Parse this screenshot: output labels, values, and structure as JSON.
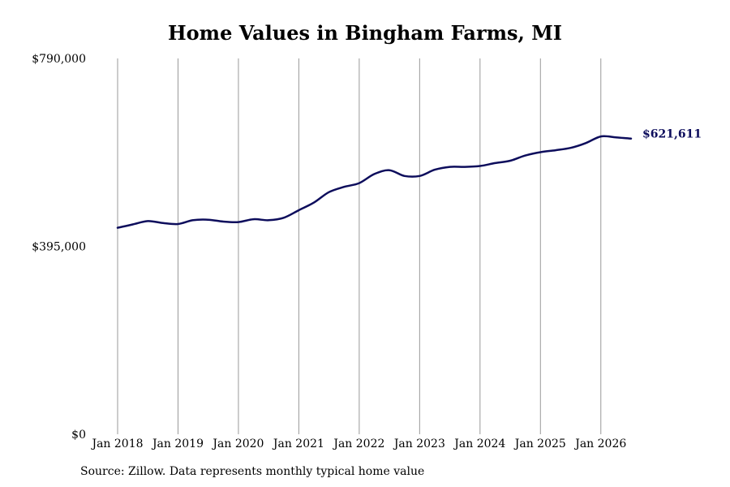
{
  "chart_data": {
    "type": "line",
    "title": "Home Values in Bingham Farms, MI",
    "xlabel": "",
    "ylabel": "",
    "ylim": [
      0,
      790000
    ],
    "xlim": [
      "2018-01",
      "2026-07"
    ],
    "y_ticks": [
      {
        "value": 0,
        "label": "$0"
      },
      {
        "value": 395000,
        "label": "$395,000"
      },
      {
        "value": 790000,
        "label": "$790,000"
      }
    ],
    "x_ticks": [
      {
        "date": "2018-01",
        "label": "Jan 2018"
      },
      {
        "date": "2019-01",
        "label": "Jan 2019"
      },
      {
        "date": "2020-01",
        "label": "Jan 2020"
      },
      {
        "date": "2021-01",
        "label": "Jan 2021"
      },
      {
        "date": "2022-01",
        "label": "Jan 2022"
      },
      {
        "date": "2023-01",
        "label": "Jan 2023"
      },
      {
        "date": "2024-01",
        "label": "Jan 2024"
      },
      {
        "date": "2025-01",
        "label": "Jan 2025"
      },
      {
        "date": "2026-01",
        "label": "Jan 2026"
      }
    ],
    "grid": {
      "vertical": true,
      "horizontal": false
    },
    "series": [
      {
        "color": "#0d0d5c",
        "points": [
          [
            "2018-01",
            434000
          ],
          [
            "2018-04",
            441000
          ],
          [
            "2018-07",
            448000
          ],
          [
            "2018-10",
            444000
          ],
          [
            "2019-01",
            442000
          ],
          [
            "2019-04",
            450000
          ],
          [
            "2019-07",
            451000
          ],
          [
            "2019-10",
            447000
          ],
          [
            "2020-01",
            446000
          ],
          [
            "2020-04",
            452000
          ],
          [
            "2020-07",
            450000
          ],
          [
            "2020-10",
            455000
          ],
          [
            "2021-01",
            471000
          ],
          [
            "2021-04",
            487000
          ],
          [
            "2021-07",
            509000
          ],
          [
            "2021-10",
            520000
          ],
          [
            "2022-01",
            528000
          ],
          [
            "2022-04",
            547000
          ],
          [
            "2022-07",
            555000
          ],
          [
            "2022-10",
            543000
          ],
          [
            "2023-01",
            543000
          ],
          [
            "2023-04",
            556000
          ],
          [
            "2023-07",
            562000
          ],
          [
            "2023-10",
            562000
          ],
          [
            "2024-01",
            564000
          ],
          [
            "2024-04",
            570000
          ],
          [
            "2024-07",
            575000
          ],
          [
            "2024-10",
            586000
          ],
          [
            "2025-01",
            593000
          ],
          [
            "2025-04",
            597000
          ],
          [
            "2025-07",
            602000
          ],
          [
            "2025-10",
            612000
          ],
          [
            "2026-01",
            626000
          ],
          [
            "2026-04",
            624000
          ],
          [
            "2026-07",
            621611
          ]
        ]
      }
    ],
    "end_label": "$621,611",
    "source": "Source: Zillow. Data represents monthly typical home value"
  }
}
